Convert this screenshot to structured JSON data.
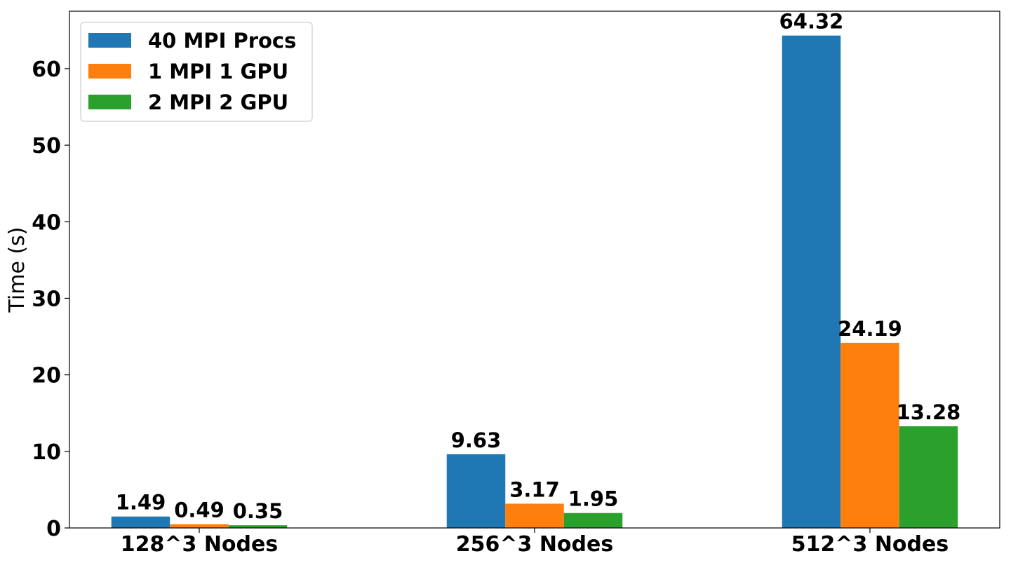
{
  "chart_data": {
    "type": "bar",
    "title": "",
    "xlabel": "",
    "ylabel": "Time (s)",
    "categories": [
      "128^3 Nodes",
      "256^3 Nodes",
      "512^3 Nodes"
    ],
    "series": [
      {
        "name": "40 MPI Procs",
        "color": "#1f77b4",
        "values": [
          1.49,
          9.63,
          64.32
        ],
        "labels": [
          "1.49",
          "9.63",
          "64.32"
        ]
      },
      {
        "name": "1 MPI 1 GPU",
        "color": "#ff7f0e",
        "values": [
          0.49,
          3.17,
          24.19
        ],
        "labels": [
          "0.49",
          "3.17",
          "24.19"
        ]
      },
      {
        "name": "2 MPI 2 GPU",
        "color": "#2ca02c",
        "values": [
          0.35,
          1.95,
          13.28
        ],
        "labels": [
          "0.35",
          "1.95",
          "13.28"
        ]
      }
    ],
    "ylim": [
      0,
      67.5
    ],
    "yticks": [
      0,
      10,
      20,
      30,
      40,
      50,
      60
    ],
    "ytick_labels": [
      "0",
      "10",
      "20",
      "30",
      "40",
      "50",
      "60"
    ],
    "grid": false,
    "legend_position": "top-left"
  }
}
